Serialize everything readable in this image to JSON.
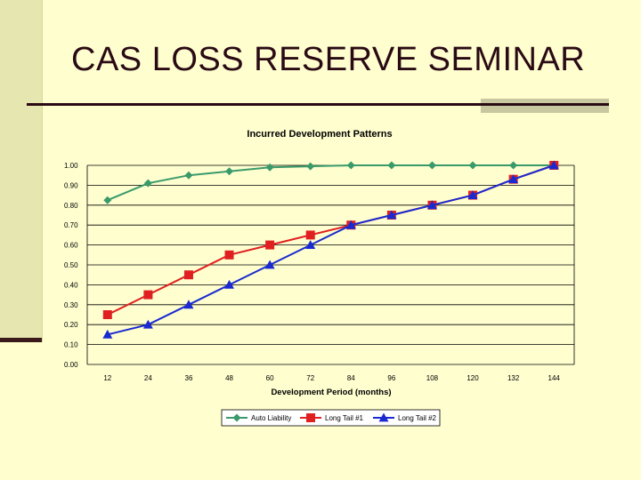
{
  "slide": {
    "title": "CAS LOSS RESERVE SEMINAR"
  },
  "chart_data": {
    "type": "line",
    "title": "Incurred Development Patterns",
    "xlabel": "Development Period (months)",
    "ylabel": "",
    "categories": [
      "12",
      "24",
      "36",
      "48",
      "60",
      "72",
      "84",
      "96",
      "108",
      "120",
      "132",
      "144"
    ],
    "ylim": [
      0,
      1
    ],
    "yticks": [
      "0.00",
      "0.10",
      "0.20",
      "0.30",
      "0.40",
      "0.50",
      "0.60",
      "0.70",
      "0.80",
      "0.90",
      "1.00"
    ],
    "legend_position": "bottom",
    "series": [
      {
        "name": "Auto Liability",
        "color": "#3a9a6a",
        "marker": "diamond",
        "values": [
          0.825,
          0.91,
          0.95,
          0.97,
          0.99,
          0.995,
          1.0,
          1.0,
          1.0,
          1.0,
          1.0,
          1.0
        ]
      },
      {
        "name": "Long Tail #1",
        "color": "#e02020",
        "marker": "square",
        "values": [
          0.25,
          0.35,
          0.45,
          0.55,
          0.6,
          0.65,
          0.7,
          0.75,
          0.8,
          0.85,
          0.93,
          1.0
        ]
      },
      {
        "name": "Long Tail #2",
        "color": "#1a2ad0",
        "marker": "triangle",
        "values": [
          0.15,
          0.2,
          0.3,
          0.4,
          0.5,
          0.6,
          0.7,
          0.75,
          0.8,
          0.85,
          0.93,
          1.0
        ]
      }
    ]
  }
}
